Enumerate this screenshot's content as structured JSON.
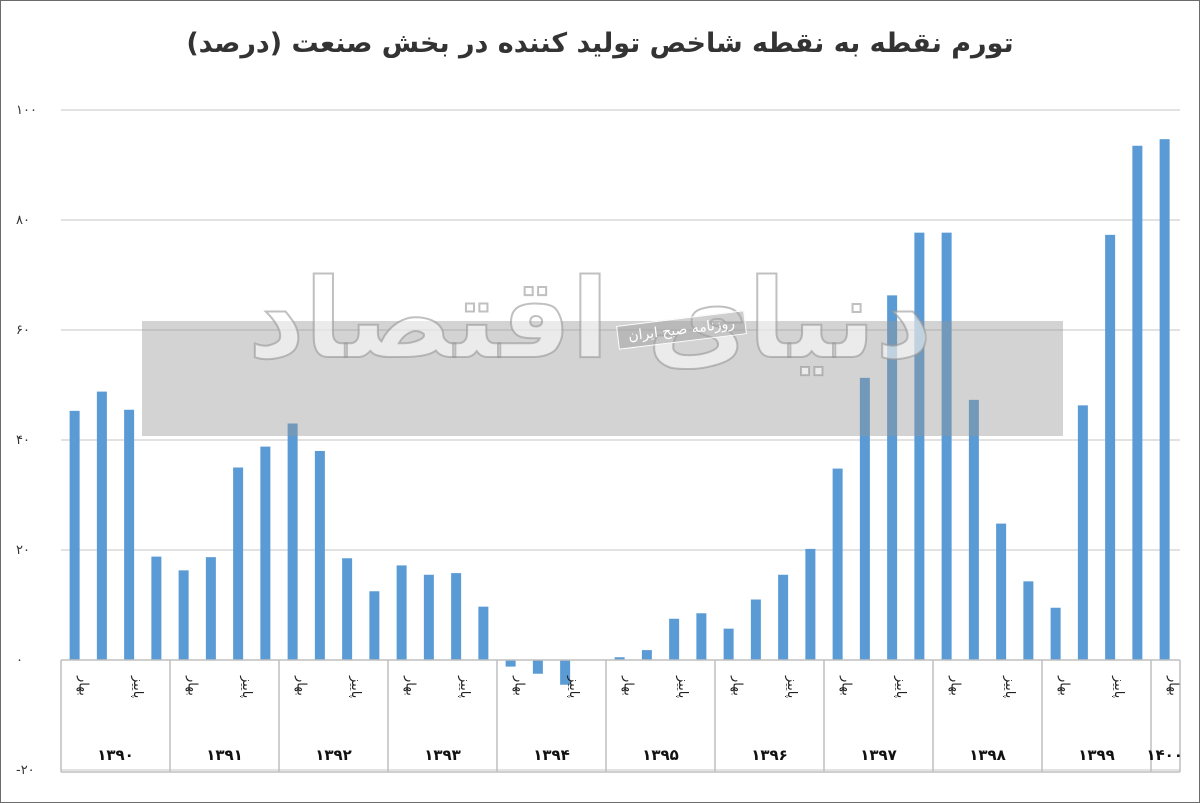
{
  "chart_data": {
    "type": "bar",
    "title": "تورم نقطه به نقطه شاخص تولید کننده در بخش صنعت (درصد)",
    "xlabel": "",
    "ylabel": "",
    "ylim": [
      -20,
      100
    ],
    "yticks": [
      "-۲۰",
      "۰",
      "۲۰",
      "۴۰",
      "۶۰",
      "۸۰",
      "۱۰۰"
    ],
    "ytick_values": [
      -20,
      0,
      20,
      40,
      60,
      80,
      100
    ],
    "grid": true,
    "bar_color": "#5b9bd5",
    "season_labels": {
      "spring": "بهار",
      "autumn": "پاییز"
    },
    "years": [
      "۱۳۹۰",
      "۱۳۹۱",
      "۱۳۹۲",
      "۱۳۹۳",
      "۱۳۹۴",
      "۱۳۹۵",
      "۱۳۹۶",
      "۱۳۹۷",
      "۱۳۹۸",
      "۱۳۹۹",
      "۱۴۰۰"
    ],
    "values": [
      45.3,
      48.8,
      45.5,
      18.8,
      16.3,
      18.7,
      35.0,
      38.8,
      43.0,
      38.0,
      18.5,
      12.5,
      17.2,
      15.5,
      15.8,
      9.7,
      -1.2,
      -2.5,
      -4.5,
      0.0,
      0.5,
      1.8,
      7.5,
      8.5,
      5.7,
      11.0,
      15.5,
      20.2,
      34.8,
      51.3,
      66.3,
      77.7,
      77.7,
      47.3,
      24.8,
      14.3,
      9.5,
      46.3,
      77.3,
      93.5,
      94.7
    ]
  },
  "watermark": {
    "brand": "دنیای اقتصاد",
    "tagline": "روزنامه صبح ایران"
  }
}
